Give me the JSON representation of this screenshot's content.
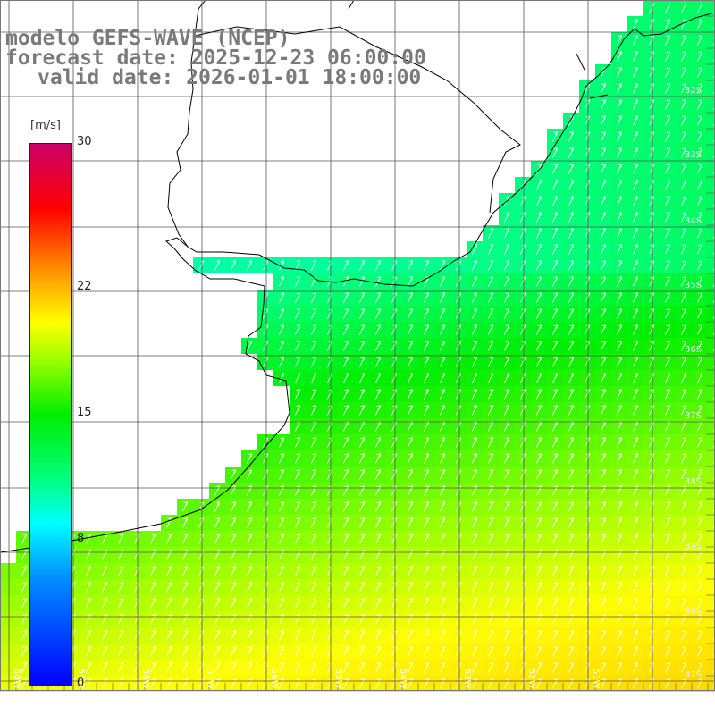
{
  "title": {
    "model": "modelo GEFS-WAVE (NCEP)",
    "forecast": "forecast date: 2025-12-23 06:00:00",
    "valid": "valid date: 2026-01-01 18:00:00"
  },
  "colorbar": {
    "units": "[m/s]",
    "ticks": [
      "30",
      "22",
      "15",
      "8",
      "0"
    ],
    "tick_values": [
      30,
      22,
      15,
      8,
      0
    ],
    "range": [
      0,
      30
    ],
    "colors": [
      "#0000ff",
      "#00ffff",
      "#00ee00",
      "#ffff00",
      "#ff9900",
      "#ff0000",
      "#cc0066"
    ]
  },
  "map": {
    "lat_labels": [
      "32S",
      "33S",
      "34S",
      "35S",
      "36S",
      "37S",
      "38S",
      "39S",
      "40S",
      "41S"
    ],
    "lon_labels": [
      "60W",
      "59W",
      "58W",
      "57W",
      "56W",
      "55W",
      "54W",
      "53W",
      "52W",
      "51W"
    ],
    "land_color": "#ffffff",
    "grid_color": "#555555",
    "arrow_color": "#ffffff",
    "coast_color": "#000000"
  }
}
